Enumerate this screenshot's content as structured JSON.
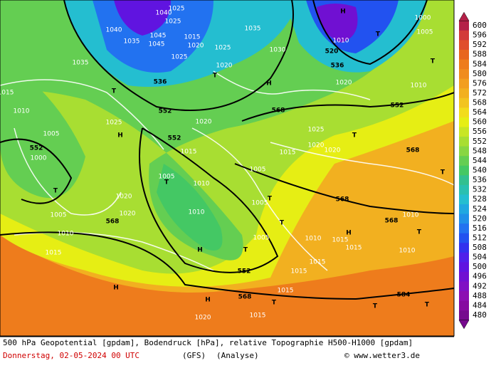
{
  "colorbar": {
    "levels": [
      600,
      596,
      592,
      588,
      584,
      580,
      576,
      572,
      568,
      564,
      560,
      556,
      552,
      548,
      544,
      540,
      536,
      532,
      528,
      524,
      520,
      516,
      512,
      508,
      504,
      500,
      496,
      492,
      488,
      484,
      480
    ],
    "colors": [
      "#b42048",
      "#d23a3a",
      "#e04e2c",
      "#e8661e",
      "#ee7c1c",
      "#f08c1e",
      "#f29e20",
      "#f2b020",
      "#f2c420",
      "#f2dc1c",
      "#e6ee14",
      "#c8e624",
      "#a8de32",
      "#88d642",
      "#64ce52",
      "#44c864",
      "#32c090",
      "#2ac0b0",
      "#24bed0",
      "#20a8e0",
      "#2090e8",
      "#2272f0",
      "#2252f0",
      "#3232ee",
      "#5020ea",
      "#6014e0",
      "#7010d2",
      "#8010c4",
      "#8c0eb2",
      "#860aa0",
      "#760a8e"
    ]
  },
  "caption": {
    "line1": "500 hPa Geopotential [gpdam], Bodendruck [hPa], relative Topographie H500-H1000 [gpdam]",
    "date": "Donnerstag, 02-05-2024  00 UTC",
    "model": "(GFS)",
    "run": "(Analyse)",
    "credit": "© www.wetter3.de"
  },
  "map_labels": [
    "1040",
    "1025",
    "1025",
    "1040",
    "1045",
    "1035",
    "1045",
    "1015",
    "1020",
    "1025",
    "536",
    "1025",
    "1020",
    "T",
    "1035",
    "1030",
    "H",
    "1010",
    "520",
    "536",
    "T",
    "1020",
    "1000",
    "1005",
    "T",
    "1010",
    "552",
    "552",
    "568",
    "1020",
    "1025",
    "H",
    "552",
    "1005",
    "552",
    "1000",
    "T",
    "1005",
    "1010",
    "1015",
    "1010",
    "1015",
    "T",
    "1035",
    "H",
    "1025",
    "T",
    "1020",
    "1020",
    "568",
    "1015",
    "1015",
    "1005",
    "T",
    "1005",
    "1010",
    "T",
    "1005",
    "T",
    "1020",
    "1020",
    "568",
    "568",
    "1010",
    "T",
    "568",
    "1010",
    "T",
    "H",
    "1010",
    "1015",
    "1015",
    "1005",
    "H",
    "T",
    "1010",
    "552",
    "1015",
    "1015",
    "H",
    "1015",
    "568",
    "H",
    "T",
    "584",
    "T",
    "T",
    "1020",
    "1015"
  ]
}
